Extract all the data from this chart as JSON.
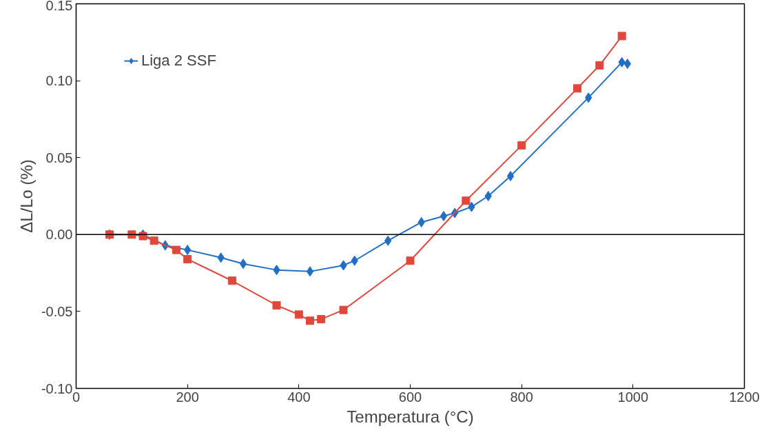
{
  "chart_data": {
    "type": "line",
    "xlabel": "Temperatura (°C)",
    "ylabel": "ΔL/Lo (%)",
    "xlim": [
      0,
      1200
    ],
    "xticks": [
      0,
      200,
      400,
      600,
      800,
      1000,
      1200
    ],
    "ylim": [
      -0.1,
      0.15
    ],
    "yticks": [
      {
        "value": -0.1,
        "label": "-0.10"
      },
      {
        "value": -0.05,
        "label": "-0.05"
      },
      {
        "value": 0,
        "label": "0.00"
      },
      {
        "value": 0.05,
        "label": "0.05"
      },
      {
        "value": 0.1,
        "label": "0.10"
      },
      {
        "value": 0.15,
        "label": "0.15"
      }
    ],
    "grid": false,
    "legend": "top left",
    "ref_lines": [
      {
        "axis": "y",
        "value": 0,
        "color": "#000000"
      }
    ],
    "series": [
      {
        "name": "Liga 2 SSF",
        "color": "#1f6fc8",
        "marker": "diamond",
        "x": [
          60,
          120,
          160,
          200,
          260,
          300,
          360,
          420,
          480,
          500,
          560,
          620,
          660,
          680,
          710,
          740,
          780,
          920,
          980,
          990
        ],
        "values": [
          0,
          0,
          -0.007,
          -0.01,
          -0.015,
          -0.019,
          -0.023,
          -0.024,
          -0.02,
          -0.017,
          -0.004,
          0.008,
          0.012,
          0.014,
          0.018,
          0.025,
          0.038,
          0.089,
          0.112,
          0.111
        ]
      },
      {
        "color": "#e0483c",
        "marker": "square",
        "x": [
          60,
          100,
          120,
          140,
          180,
          200,
          280,
          360,
          400,
          420,
          440,
          480,
          600,
          700,
          800,
          900,
          940,
          980
        ],
        "values": [
          0,
          0,
          -0.001,
          -0.004,
          -0.01,
          -0.016,
          -0.03,
          -0.046,
          -0.052,
          -0.056,
          -0.055,
          -0.049,
          -0.017,
          0.022,
          0.058,
          0.095,
          0.11,
          0.129
        ]
      }
    ]
  }
}
